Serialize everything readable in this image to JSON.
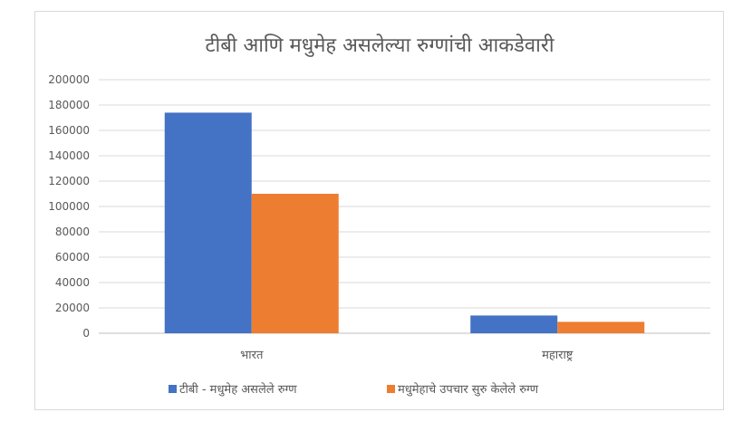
{
  "chart_data": {
    "type": "bar",
    "title": "टीबी आणि मधुमेह असलेल्या रुग्णांची आकडेवारी",
    "categories": [
      "भारत",
      "महाराष्ट्र"
    ],
    "series": [
      {
        "name": "टीबी - मधुमेह असलेले रुग्ण",
        "color": "#4472c4",
        "values": [
          174000,
          14000
        ]
      },
      {
        "name": "मधुमेहाचे उपचार सुरु केलेले रुग्ण",
        "color": "#ed7d31",
        "values": [
          110000,
          9000
        ]
      }
    ],
    "ylim": [
      0,
      200000
    ],
    "yticks": [
      "0",
      "20000",
      "40000",
      "60000",
      "80000",
      "100000",
      "120000",
      "140000",
      "160000",
      "180000",
      "200000"
    ],
    "grid": true,
    "legend": "bottom"
  }
}
